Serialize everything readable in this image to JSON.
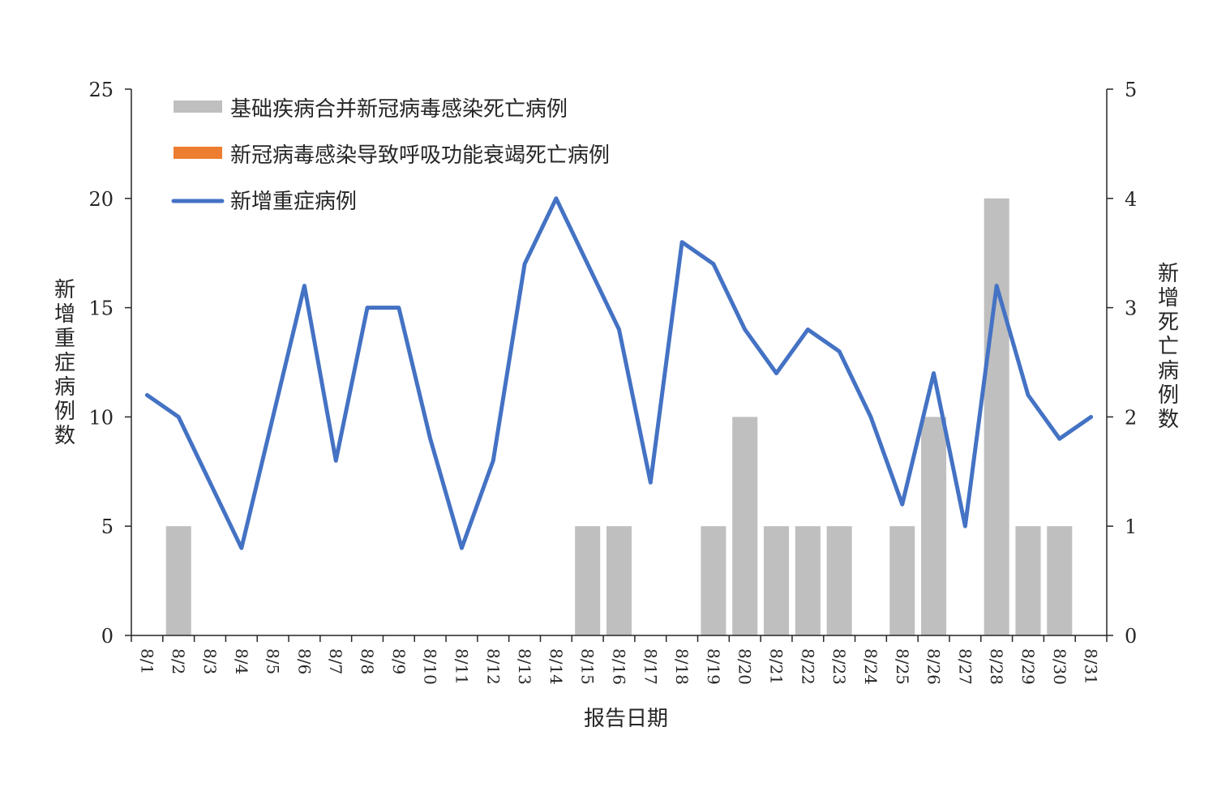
{
  "chart_data": {
    "type": "bar",
    "title": "",
    "xlabel": "报告日期",
    "ylabel_left": "新增重症病例数",
    "ylabel_right": "新增死亡病例数",
    "ylim_left": [
      0,
      25
    ],
    "ylim_right": [
      0,
      5
    ],
    "yticks_left": [
      "0",
      "5",
      "10",
      "15",
      "20",
      "25"
    ],
    "yticks_right": [
      "0",
      "1",
      "2",
      "3",
      "4",
      "5"
    ],
    "grid": false,
    "legend_position": "top-left",
    "categories": [
      "8/1",
      "8/2",
      "8/3",
      "8/4",
      "8/5",
      "8/6",
      "8/7",
      "8/8",
      "8/9",
      "8/10",
      "8/11",
      "8/12",
      "8/13",
      "8/14",
      "8/15",
      "8/16",
      "8/17",
      "8/18",
      "8/19",
      "8/20",
      "8/21",
      "8/22",
      "8/23",
      "8/24",
      "8/25",
      "8/26",
      "8/27",
      "8/28",
      "8/29",
      "8/30",
      "8/31"
    ],
    "series": [
      {
        "name": "基础疾病合并新冠病毒感染死亡病例",
        "type": "bar",
        "axis": "right",
        "color": "#bfbfbf",
        "values": [
          0,
          1,
          0,
          0,
          0,
          0,
          0,
          0,
          0,
          0,
          0,
          0,
          0,
          0,
          1,
          1,
          0,
          0,
          1,
          2,
          1,
          1,
          1,
          0,
          1,
          2,
          0,
          4,
          1,
          1,
          0
        ]
      },
      {
        "name": "新冠病毒感染导致呼吸功能衰竭死亡病例",
        "type": "bar",
        "axis": "right",
        "color": "#ed7d31",
        "values": [
          0,
          0,
          0,
          0,
          0,
          0,
          0,
          0,
          0,
          0,
          0,
          0,
          0,
          0,
          0,
          0,
          0,
          0,
          0,
          0,
          0,
          0,
          0,
          0,
          0,
          0,
          0,
          0,
          0,
          0,
          0
        ]
      },
      {
        "name": "新增重症病例",
        "type": "line",
        "axis": "left",
        "color": "#4472c4",
        "values": [
          11,
          10,
          7,
          4,
          10,
          16,
          8,
          15,
          15,
          9,
          4,
          8,
          17,
          20,
          17,
          14,
          7,
          18,
          17,
          14,
          12,
          14,
          13,
          10,
          6,
          12,
          5,
          16,
          11,
          9,
          10
        ]
      }
    ]
  }
}
